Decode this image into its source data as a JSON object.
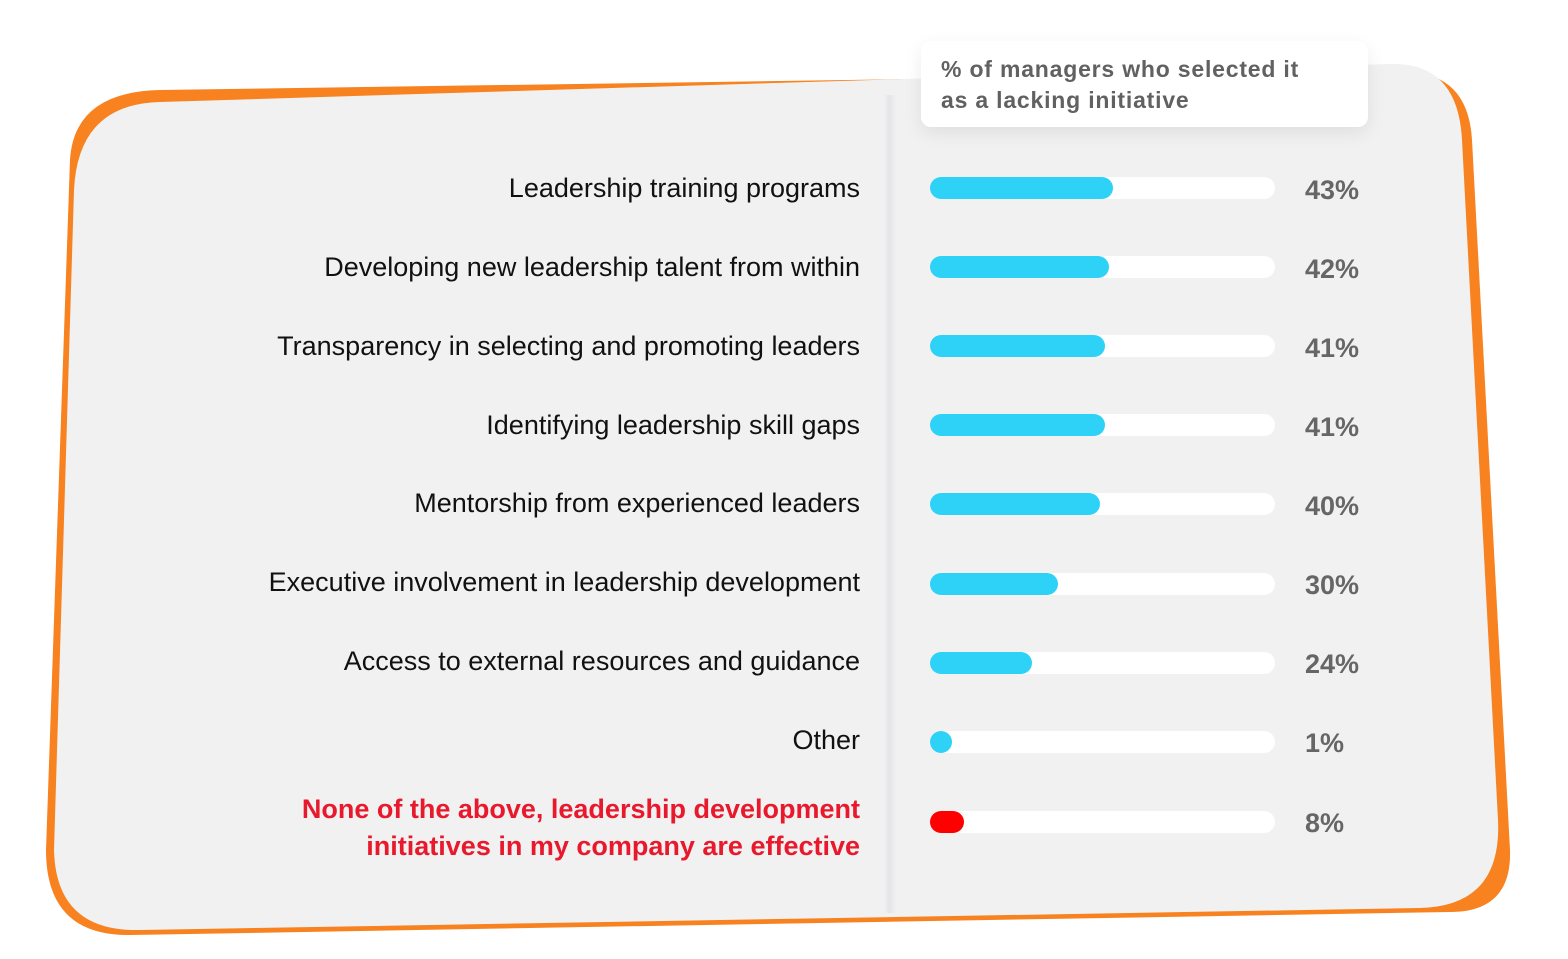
{
  "legend": {
    "line1": "% of managers who selected it",
    "line2": "as a lacking initiative"
  },
  "colors": {
    "bar_default": "#2fd2f7",
    "bar_highlight": "#ff0000",
    "track": "#ffffff",
    "card": "#f1f1f1",
    "accent_orange": "#f7821f",
    "label_highlight": "#e8192c",
    "value_text": "#666666"
  },
  "rows": [
    {
      "label": "Leadership training programs",
      "value": 43,
      "value_label": "43%"
    },
    {
      "label": "Developing new leadership talent from within",
      "value": 42,
      "value_label": "42%"
    },
    {
      "label": "Transparency in selecting and promoting leaders",
      "value": 41,
      "value_label": "41%"
    },
    {
      "label": "Identifying leadership skill gaps",
      "value": 41,
      "value_label": "41%"
    },
    {
      "label": "Mentorship from experienced leaders",
      "value": 40,
      "value_label": "40%"
    },
    {
      "label": "Executive involvement in leadership development",
      "value": 30,
      "value_label": "30%"
    },
    {
      "label": "Access to external resources and guidance",
      "value": 24,
      "value_label": "24%"
    },
    {
      "label": "Other",
      "value": 1,
      "value_label": "1%"
    },
    {
      "label_line1": "None of the above, leadership development",
      "label_line2": "initiatives in my company are effective",
      "value": 8,
      "value_label": "8%",
      "highlight": true
    }
  ],
  "chart_data": {
    "type": "bar",
    "orientation": "horizontal",
    "title": "",
    "legend": "% of managers who selected it as a lacking initiative",
    "categories": [
      "Leadership training programs",
      "Developing new leadership talent from within",
      "Transparency in selecting and promoting leaders",
      "Identifying leadership skill gaps",
      "Mentorship from experienced leaders",
      "Executive involvement in leadership development",
      "Access to external resources and guidance",
      "Other",
      "None of the above, leadership development initiatives in my company are effective"
    ],
    "values": [
      43,
      42,
      41,
      41,
      40,
      30,
      24,
      1,
      8
    ],
    "unit": "%",
    "xlabel": "",
    "ylabel": "",
    "grid": false,
    "highlight_category": "None of the above, leadership development initiatives in my company are effective"
  }
}
